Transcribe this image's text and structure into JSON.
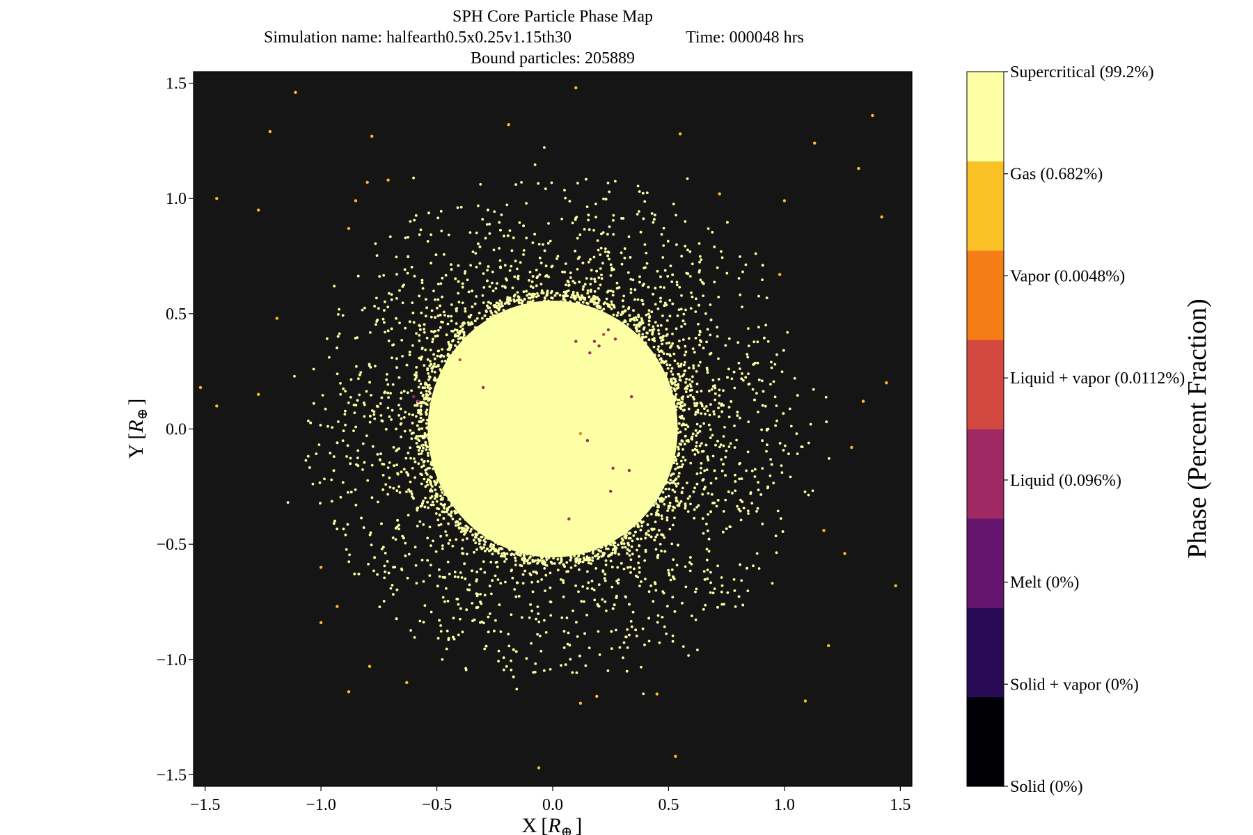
{
  "chart_data": {
    "type": "scatter",
    "title": {
      "line1": "SPH Core Particle Phase Map",
      "line2_name": "Simulation name: halfearth0.5x0.25v1.15th30",
      "line2_time": "Time: 000048 hrs",
      "line3": "Bound particles: 205889"
    },
    "xlabel_main": "X",
    "xlabel_unit": "R",
    "ylabel_main": "Y",
    "ylabel_unit": "R",
    "unit_subscript": "⊕",
    "xlim": [
      -1.55,
      1.55
    ],
    "ylim": [
      -1.55,
      1.55
    ],
    "xticks": [
      {
        "value": -1.5,
        "label": "−1.5"
      },
      {
        "value": -1.0,
        "label": "−1.0"
      },
      {
        "value": -0.5,
        "label": "−0.5"
      },
      {
        "value": 0.0,
        "label": "0.0"
      },
      {
        "value": 0.5,
        "label": "0.5"
      },
      {
        "value": 1.0,
        "label": "1.0"
      },
      {
        "value": 1.5,
        "label": "1.5"
      }
    ],
    "yticks": [
      {
        "value": -1.5,
        "label": "−1.5"
      },
      {
        "value": -1.0,
        "label": "−1.0"
      },
      {
        "value": -0.5,
        "label": "−0.5"
      },
      {
        "value": 0.0,
        "label": "0.0"
      },
      {
        "value": 0.5,
        "label": "0.5"
      },
      {
        "value": 1.0,
        "label": "1.0"
      },
      {
        "value": 1.5,
        "label": "1.5"
      }
    ],
    "plot_background": "#151515",
    "grid": false,
    "colorbar": {
      "label": "Phase (Percent Fraction)",
      "categories": [
        {
          "name": "Solid (0%)",
          "color": "#000004"
        },
        {
          "name": "Solid + vapor (0%)",
          "color": "#280b54"
        },
        {
          "name": "Melt (0%)",
          "color": "#65156e"
        },
        {
          "name": "Liquid (0.096%)",
          "color": "#9f2a63"
        },
        {
          "name": "Liquid + vapor (0.0112%)",
          "color": "#d44842"
        },
        {
          "name": "Vapor (0.0048%)",
          "color": "#f57d15"
        },
        {
          "name": "Gas (0.682%)",
          "color": "#fac127"
        },
        {
          "name": "Supercritical (99.2%)",
          "color": "#fcffa4"
        }
      ]
    },
    "series": [
      {
        "phase": "Supercritical (99.2%)",
        "color": "#fcffa4",
        "distribution": {
          "core_center": [
            0.0,
            0.0
          ],
          "core_radius": 0.58,
          "halo_inner_radius": 0.6,
          "halo_outer_radius": 1.05
        }
      },
      {
        "phase": "Gas (0.682%)",
        "color": "#fac127",
        "points": [
          [
            -1.11,
            1.46
          ],
          [
            -1.22,
            1.29
          ],
          [
            -0.78,
            1.27
          ],
          [
            -0.19,
            1.32
          ],
          [
            0.1,
            1.48
          ],
          [
            0.55,
            1.28
          ],
          [
            1.13,
            1.24
          ],
          [
            1.38,
            1.36
          ],
          [
            1.32,
            1.13
          ],
          [
            -1.45,
            1.0
          ],
          [
            -1.27,
            0.95
          ],
          [
            -0.85,
            0.99
          ],
          [
            -0.8,
            1.07
          ],
          [
            -0.71,
            1.08
          ],
          [
            0.72,
            1.02
          ],
          [
            1.0,
            0.99
          ],
          [
            1.42,
            0.92
          ],
          [
            -0.88,
            0.87
          ],
          [
            -1.19,
            0.48
          ],
          [
            0.98,
            0.67
          ],
          [
            -1.52,
            0.18
          ],
          [
            -1.45,
            0.1
          ],
          [
            -1.27,
            0.15
          ],
          [
            1.44,
            0.2
          ],
          [
            1.34,
            0.12
          ],
          [
            1.29,
            -0.08
          ],
          [
            1.17,
            -0.44
          ],
          [
            1.26,
            -0.54
          ],
          [
            1.48,
            -0.68
          ],
          [
            -1.0,
            -0.6
          ],
          [
            -0.93,
            -0.77
          ],
          [
            -1.0,
            -0.84
          ],
          [
            -0.79,
            -1.03
          ],
          [
            -0.88,
            -1.14
          ],
          [
            -0.63,
            -1.1
          ],
          [
            1.19,
            -0.94
          ],
          [
            1.09,
            -1.18
          ],
          [
            0.53,
            -1.42
          ],
          [
            -0.06,
            -1.47
          ],
          [
            0.19,
            -1.16
          ],
          [
            0.12,
            -1.19
          ],
          [
            0.45,
            -1.15
          ]
        ]
      },
      {
        "phase": "Liquid (0.096%)",
        "color": "#9f2a63",
        "points": [
          [
            0.07,
            -0.39
          ],
          [
            0.18,
            0.38
          ],
          [
            0.2,
            0.36
          ],
          [
            0.24,
            0.43
          ],
          [
            0.27,
            0.39
          ],
          [
            0.34,
            0.14
          ],
          [
            -0.6,
            0.14
          ],
          [
            -0.58,
            0.12
          ],
          [
            0.26,
            -0.17
          ],
          [
            0.33,
            -0.18
          ],
          [
            0.25,
            -0.27
          ],
          [
            0.1,
            0.38
          ],
          [
            0.16,
            0.33
          ],
          [
            -0.3,
            0.18
          ],
          [
            0.15,
            -0.05
          ]
        ]
      },
      {
        "phase": "Liquid + vapor (0.0112%)",
        "color": "#d44842",
        "points": [
          [
            0.22,
            0.41
          ],
          [
            -0.4,
            0.3
          ]
        ]
      },
      {
        "phase": "Vapor (0.0048%)",
        "color": "#f57d15",
        "points": [
          [
            0.12,
            -0.02
          ]
        ]
      }
    ]
  }
}
